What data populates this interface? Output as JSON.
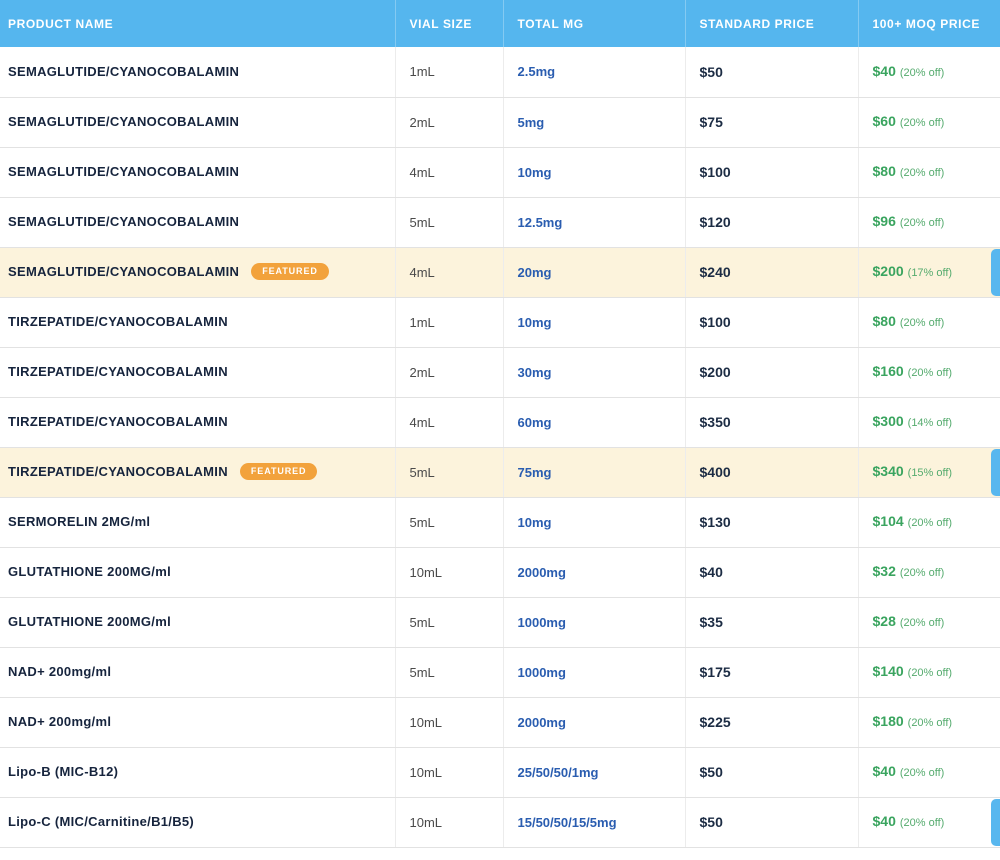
{
  "colors": {
    "header_blue": "#55b6ee",
    "featured_row_bg": "#fcf3dc",
    "badge_orange": "#f2a23c",
    "mg_blue": "#2a5db0",
    "price_navy": "#1c2c44",
    "moq_green": "#3aa45f"
  },
  "table": {
    "columns": [
      {
        "label": "PRODUCT NAME"
      },
      {
        "label": "VIAL SIZE"
      },
      {
        "label": "TOTAL MG"
      },
      {
        "label": "STANDARD PRICE"
      },
      {
        "label": "100+ MOQ PRICE"
      }
    ],
    "rows": [
      {
        "product": "SEMAGLUTIDE/CYANOCOBALAMIN",
        "vial": "1mL",
        "mg": "2.5mg",
        "price": "$50",
        "moq": "$40",
        "discount": "(20% off)"
      },
      {
        "product": "SEMAGLUTIDE/CYANOCOBALAMIN",
        "vial": "2mL",
        "mg": "5mg",
        "price": "$75",
        "moq": "$60",
        "discount": "(20% off)"
      },
      {
        "product": "SEMAGLUTIDE/CYANOCOBALAMIN",
        "vial": "4mL",
        "mg": "10mg",
        "price": "$100",
        "moq": "$80",
        "discount": "(20% off)"
      },
      {
        "product": "SEMAGLUTIDE/CYANOCOBALAMIN",
        "vial": "5mL",
        "mg": "12.5mg",
        "price": "$120",
        "moq": "$96",
        "discount": "(20% off)"
      },
      {
        "product": "SEMAGLUTIDE/CYANOCOBALAMIN",
        "badge": "FEATURED",
        "vial": "4mL",
        "mg": "20mg",
        "price": "$240",
        "moq": "$200",
        "discount": "(17% off)"
      },
      {
        "product": "TIRZEPATIDE/CYANOCOBALAMIN",
        "vial": "1mL",
        "mg": "10mg",
        "price": "$100",
        "moq": "$80",
        "discount": "(20% off)"
      },
      {
        "product": "TIRZEPATIDE/CYANOCOBALAMIN",
        "vial": "2mL",
        "mg": "30mg",
        "price": "$200",
        "moq": "$160",
        "discount": "(20% off)"
      },
      {
        "product": "TIRZEPATIDE/CYANOCOBALAMIN",
        "vial": "4mL",
        "mg": "60mg",
        "price": "$350",
        "moq": "$300",
        "discount": "(14% off)"
      },
      {
        "product": "TIRZEPATIDE/CYANOCOBALAMIN",
        "badge": "FEATURED",
        "vial": "5mL",
        "mg": "75mg",
        "price": "$400",
        "moq": "$340",
        "discount": "(15% off)"
      },
      {
        "product": "SERMORELIN 2MG/ml",
        "vial": "5mL",
        "mg": "10mg",
        "price": "$130",
        "moq": "$104",
        "discount": "(20% off)"
      },
      {
        "product": "GLUTATHIONE 200MG/ml",
        "vial": "10mL",
        "mg": "2000mg",
        "price": "$40",
        "moq": "$32",
        "discount": "(20% off)"
      },
      {
        "product": "GLUTATHIONE 200MG/ml",
        "vial": "5mL",
        "mg": "1000mg",
        "price": "$35",
        "moq": "$28",
        "discount": "(20% off)"
      },
      {
        "product": "NAD+ 200mg/ml",
        "vial": "5mL",
        "mg": "1000mg",
        "price": "$175",
        "moq": "$140",
        "discount": "(20% off)"
      },
      {
        "product": "NAD+ 200mg/ml",
        "vial": "10mL",
        "mg": "2000mg",
        "price": "$225",
        "moq": "$180",
        "discount": "(20% off)"
      },
      {
        "product": "Lipo-B (MIC-B12)",
        "vial": "10mL",
        "mg": "25/50/50/1mg",
        "price": "$50",
        "moq": "$40",
        "discount": "(20% off)"
      },
      {
        "product": "Lipo-C (MIC/Carnitine/B1/B5)",
        "vial": "10mL",
        "mg": "15/50/50/15/5mg",
        "price": "$50",
        "moq": "$40",
        "discount": "(20% off)"
      }
    ]
  }
}
